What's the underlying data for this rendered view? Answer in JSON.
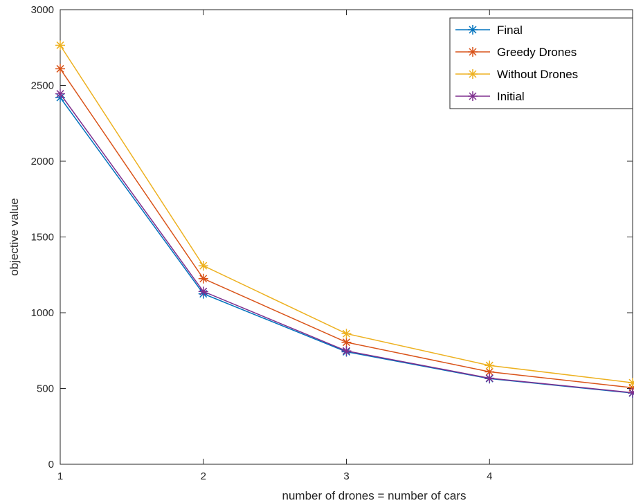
{
  "chart_data": {
    "type": "line",
    "title": "",
    "xlabel": "number of drones = number of cars",
    "ylabel": "objective value",
    "x": [
      1,
      2,
      3,
      4,
      5
    ],
    "xlim": [
      1,
      5
    ],
    "ylim": [
      0,
      3000
    ],
    "xticks": [
      1,
      2,
      3,
      4
    ],
    "yticks": [
      0,
      500,
      1000,
      1500,
      2000,
      2500,
      3000
    ],
    "grid": false,
    "legend_position": "top-right",
    "marker": "asterisk",
    "series": [
      {
        "name": "Final",
        "color": "#0072BD",
        "values": [
          2420,
          1125,
          742,
          565,
          470
        ]
      },
      {
        "name": "Greedy Drones",
        "color": "#D95319",
        "values": [
          2610,
          1225,
          805,
          610,
          505
        ]
      },
      {
        "name": "Without Drones",
        "color": "#EDB120",
        "values": [
          2765,
          1310,
          862,
          652,
          538
        ]
      },
      {
        "name": "Initial",
        "color": "#7E2F8E",
        "values": [
          2445,
          1140,
          748,
          568,
          472
        ]
      }
    ]
  }
}
